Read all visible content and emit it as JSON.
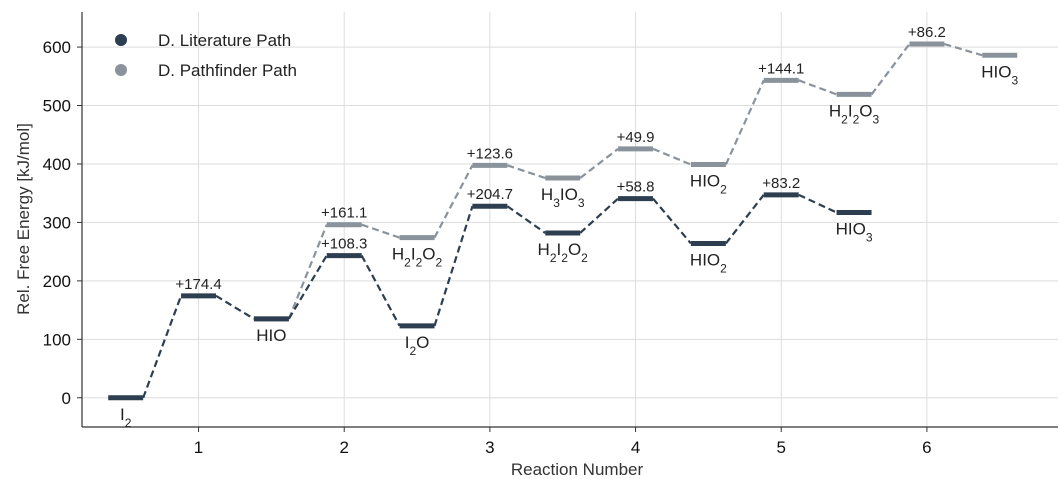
{
  "chart_data": {
    "type": "line",
    "xlabel": "Reaction Number",
    "ylabel": "Rel. Free Energy [kJ/mol]",
    "xlim": [
      0.2,
      6.9
    ],
    "ylim": [
      -50,
      660
    ],
    "grid": true,
    "legend_position": "top-left",
    "x_ticks": [
      1,
      2,
      3,
      4,
      5,
      6
    ],
    "y_ticks": [
      0,
      100,
      200,
      300,
      400,
      500,
      600
    ],
    "series": [
      {
        "name": "D. Literature Path",
        "color": "#2c3e50",
        "levels": [
          {
            "x": 0.5,
            "y": 0,
            "label": "I_2"
          },
          {
            "x": 1.5,
            "y": 135,
            "label": "HIO"
          },
          {
            "x": 2.5,
            "y": 123,
            "label": "I_2O"
          },
          {
            "x": 3.5,
            "y": 282,
            "label": "H_2I_2O_2"
          },
          {
            "x": 4.5,
            "y": 264,
            "label": "HIO_2"
          },
          {
            "x": 5.5,
            "y": 317,
            "label": "HIO_3"
          }
        ],
        "transition_states": [
          {
            "x": 1,
            "y": 174.4,
            "label": "+174.4"
          },
          {
            "x": 2,
            "y": 243.3,
            "label": "+108.3"
          },
          {
            "x": 3,
            "y": 327.7,
            "label": "+204.7"
          },
          {
            "x": 4,
            "y": 340.8,
            "label": "+58.8"
          },
          {
            "x": 5,
            "y": 347.2,
            "label": "+83.2"
          }
        ]
      },
      {
        "name": "D. Pathfinder Path",
        "color": "#8a939c",
        "levels": [
          {
            "x": 1.5,
            "y": 135,
            "label": "HIO"
          },
          {
            "x": 2.5,
            "y": 274,
            "label": "H_2I_2O_2"
          },
          {
            "x": 3.5,
            "y": 376,
            "label": "H_3IO_3"
          },
          {
            "x": 4.5,
            "y": 399,
            "label": "HIO_2"
          },
          {
            "x": 5.5,
            "y": 519,
            "label": "H_2I_2O_3"
          },
          {
            "x": 6.5,
            "y": 586,
            "label": "HIO_3"
          }
        ],
        "transition_states": [
          {
            "x": 2,
            "y": 296.1,
            "label": "+161.1"
          },
          {
            "x": 3,
            "y": 397.6,
            "label": "+123.6"
          },
          {
            "x": 4,
            "y": 425.9,
            "label": "+49.9"
          },
          {
            "x": 5,
            "y": 543.1,
            "label": "+144.1"
          },
          {
            "x": 6,
            "y": 605.2,
            "label": "+86.2"
          }
        ]
      }
    ]
  }
}
